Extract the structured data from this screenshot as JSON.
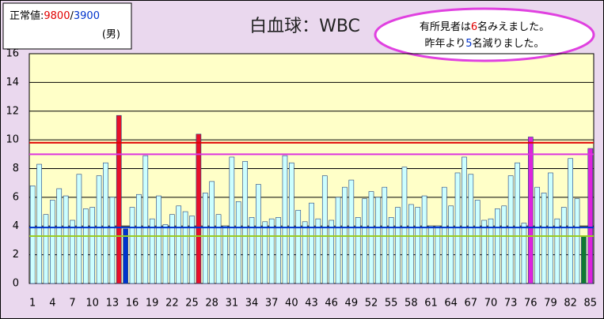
{
  "chart_data": {
    "type": "bar",
    "title": "白血球：WBC",
    "normal_range": {
      "label": "正常値:",
      "upper": "9800",
      "upper_color": "#e00000",
      "separator": "/",
      "lower": "3900",
      "lower_color": "#0033cc",
      "note": "(男)"
    },
    "annotation": [
      [
        {
          "text": "有所見者は",
          "color": "#000000"
        },
        {
          "text": "6",
          "color": "#e00000"
        },
        {
          "text": "名みえました。",
          "color": "#000000"
        }
      ],
      [
        {
          "text": "昨年より",
          "color": "#000000"
        },
        {
          "text": "5",
          "color": "#0033cc"
        },
        {
          "text": "名減りました。",
          "color": "#000000"
        }
      ]
    ],
    "categories": [
      "1",
      null,
      null,
      "4",
      null,
      null,
      "7",
      null,
      null,
      "10",
      null,
      null,
      "13",
      null,
      null,
      "16",
      null,
      null,
      "19",
      null,
      null,
      "22",
      null,
      null,
      "25",
      null,
      null,
      "28",
      null,
      null,
      "31",
      null,
      null,
      "34",
      null,
      null,
      "37",
      null,
      null,
      "40",
      null,
      null,
      "43",
      null,
      null,
      "46",
      null,
      null,
      "49",
      null,
      null,
      "52",
      null,
      null,
      "55",
      null,
      null,
      "58",
      null,
      null,
      "61",
      null,
      null,
      "64",
      null,
      null,
      "67",
      null,
      null,
      "70",
      null,
      null,
      "73",
      null,
      null,
      "76",
      null,
      null,
      "79",
      null,
      null,
      "82",
      null,
      null,
      "85"
    ],
    "values": [
      6.8,
      8.3,
      4.8,
      5.8,
      6.6,
      6.1,
      4.4,
      7.6,
      5.2,
      5.3,
      7.5,
      8.4,
      6.0,
      11.7,
      3.8,
      5.3,
      6.2,
      8.9,
      4.5,
      6.1,
      4.1,
      4.8,
      5.4,
      5.0,
      4.7,
      10.4,
      6.3,
      7.1,
      4.8,
      4.0,
      8.8,
      5.7,
      8.5,
      4.6,
      6.9,
      4.3,
      4.5,
      4.6,
      8.9,
      8.4,
      5.1,
      4.3,
      5.6,
      4.5,
      7.5,
      4.4,
      6.0,
      6.7,
      7.2,
      4.6,
      5.9,
      6.4,
      6.0,
      6.7,
      4.6,
      5.3,
      8.1,
      5.5,
      5.3,
      6.1,
      4.0,
      4.0,
      6.7,
      5.4,
      7.7,
      8.8,
      7.6,
      5.8,
      4.4,
      4.5,
      5.2,
      5.4,
      7.5,
      8.4,
      4.2,
      10.2,
      6.7,
      6.3,
      7.7,
      4.5,
      5.3,
      8.7,
      5.9,
      3.3,
      9.4
    ],
    "colors": [
      "#ccffff",
      "#ccffff",
      "#ccffff",
      "#ccffff",
      "#ccffff",
      "#ccffff",
      "#ccffff",
      "#ccffff",
      "#ccffff",
      "#ccffff",
      "#ccffff",
      "#ccffff",
      "#ccffff",
      "#e8102a",
      "#0033cc",
      "#ccffff",
      "#ccffff",
      "#ccffff",
      "#ccffff",
      "#ccffff",
      "#ccffff",
      "#ccffff",
      "#ccffff",
      "#ccffff",
      "#ccffff",
      "#e8102a",
      "#ccffff",
      "#ccffff",
      "#ccffff",
      "#ccffff",
      "#ccffff",
      "#ccffff",
      "#ccffff",
      "#ccffff",
      "#ccffff",
      "#ccffff",
      "#ccffff",
      "#ccffff",
      "#ccffff",
      "#ccffff",
      "#ccffff",
      "#ccffff",
      "#ccffff",
      "#ccffff",
      "#ccffff",
      "#ccffff",
      "#ccffff",
      "#ccffff",
      "#ccffff",
      "#ccffff",
      "#ccffff",
      "#ccffff",
      "#ccffff",
      "#ccffff",
      "#ccffff",
      "#ccffff",
      "#ccffff",
      "#ccffff",
      "#ccffff",
      "#ccffff",
      "#ccffff",
      "#ccffff",
      "#ccffff",
      "#ccffff",
      "#ccffff",
      "#ccffff",
      "#ccffff",
      "#ccffff",
      "#ccffff",
      "#ccffff",
      "#ccffff",
      "#ccffff",
      "#ccffff",
      "#ccffff",
      "#ccffff",
      "#dd22dd",
      "#ccffff",
      "#ccffff",
      "#ccffff",
      "#ccffff",
      "#ccffff",
      "#ccffff",
      "#ccffff",
      "#107a30",
      "#dd22dd"
    ],
    "reference_lines": [
      {
        "value": 9.8,
        "color": "#e00000"
      },
      {
        "value": 9.0,
        "color": "#dd33dd"
      },
      {
        "value": 3.9,
        "color": "#0033cc"
      },
      {
        "value": 3.3,
        "color": "#99cc22"
      }
    ],
    "ylim": [
      0,
      16
    ],
    "yticks": [
      0,
      2,
      4,
      6,
      8,
      10,
      12,
      14,
      16
    ],
    "grid": true
  }
}
